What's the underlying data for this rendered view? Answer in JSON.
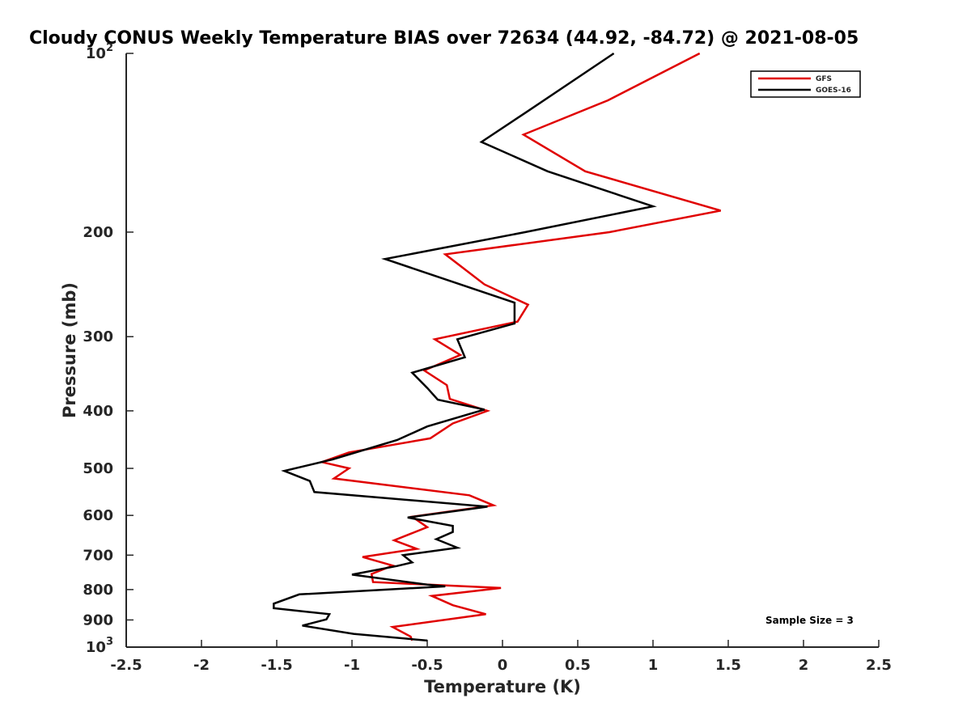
{
  "chart_data": {
    "type": "line",
    "title": "Cloudy CONUS Weekly Temperature BIAS over 72634 (44.92, -84.72) @ 2021-08-05",
    "xlabel": "Temperature (K)",
    "ylabel": "Pressure (mb)",
    "xlim": [
      -2.5,
      2.5
    ],
    "ylim": [
      1000,
      100
    ],
    "y_scale": "log",
    "y_reversed": true,
    "x_ticks": [
      "-2.5",
      "-2",
      "-1.5",
      "-1",
      "-0.5",
      "0",
      "0.5",
      "1",
      "1.5",
      "2",
      "2.5"
    ],
    "y_ticks": [
      {
        "value": 100,
        "label": "10",
        "sup": "2"
      },
      {
        "value": 200,
        "label": "200",
        "sup": ""
      },
      {
        "value": 300,
        "label": "300",
        "sup": ""
      },
      {
        "value": 400,
        "label": "400",
        "sup": ""
      },
      {
        "value": 500,
        "label": "500",
        "sup": ""
      },
      {
        "value": 600,
        "label": "600",
        "sup": ""
      },
      {
        "value": 700,
        "label": "700",
        "sup": ""
      },
      {
        "value": 800,
        "label": "800",
        "sup": ""
      },
      {
        "value": 900,
        "label": "900",
        "sup": ""
      },
      {
        "value": 1000,
        "label": "10",
        "sup": "3"
      }
    ],
    "legend_position": "top-right",
    "annotation": "Sample Size = 3",
    "series": [
      {
        "name": "GFS",
        "color": "#e00000",
        "points": [
          [
            1.31,
            100
          ],
          [
            0.7,
            120
          ],
          [
            0.14,
            137
          ],
          [
            0.55,
            158
          ],
          [
            1.45,
            184
          ],
          [
            0.71,
            200
          ],
          [
            -0.38,
            218
          ],
          [
            -0.12,
            245
          ],
          [
            0.17,
            265
          ],
          [
            0.1,
            283
          ],
          [
            -0.45,
            303
          ],
          [
            -0.28,
            322
          ],
          [
            -0.52,
            342
          ],
          [
            -0.37,
            362
          ],
          [
            -0.35,
            382
          ],
          [
            -0.1,
            400
          ],
          [
            -0.33,
            420
          ],
          [
            -0.48,
            445
          ],
          [
            -1.02,
            470
          ],
          [
            -1.2,
            488
          ],
          [
            -1.02,
            500
          ],
          [
            -1.12,
            520
          ],
          [
            -0.22,
            555
          ],
          [
            -0.06,
            577
          ],
          [
            -0.6,
            603
          ],
          [
            -0.5,
            628
          ],
          [
            -0.72,
            661
          ],
          [
            -0.57,
            683
          ],
          [
            -0.93,
            705
          ],
          [
            -0.73,
            729
          ],
          [
            -0.87,
            753
          ],
          [
            -0.86,
            777
          ],
          [
            -0.01,
            795
          ],
          [
            -0.47,
            820
          ],
          [
            -0.33,
            850
          ],
          [
            -0.11,
            880
          ],
          [
            -0.73,
            925
          ],
          [
            -0.61,
            960
          ],
          [
            -0.6,
            975
          ]
        ]
      },
      {
        "name": "GOES-16",
        "color": "#000000",
        "points": [
          [
            0.74,
            100
          ],
          [
            0.15,
            126
          ],
          [
            -0.14,
            141
          ],
          [
            0.3,
            158
          ],
          [
            1.0,
            181
          ],
          [
            0.15,
            200
          ],
          [
            -0.78,
            222
          ],
          [
            0.08,
            263
          ],
          [
            0.08,
            285
          ],
          [
            -0.3,
            303
          ],
          [
            -0.25,
            325
          ],
          [
            -0.6,
            345
          ],
          [
            -0.5,
            366
          ],
          [
            -0.43,
            383
          ],
          [
            -0.12,
            398
          ],
          [
            -0.5,
            425
          ],
          [
            -0.7,
            448
          ],
          [
            -1.13,
            483
          ],
          [
            -1.45,
            505
          ],
          [
            -1.28,
            525
          ],
          [
            -1.25,
            548
          ],
          [
            -0.1,
            580
          ],
          [
            -0.63,
            605
          ],
          [
            -0.33,
            625
          ],
          [
            -0.33,
            640
          ],
          [
            -0.44,
            658
          ],
          [
            -0.3,
            680
          ],
          [
            -0.66,
            700
          ],
          [
            -0.6,
            720
          ],
          [
            -0.7,
            730
          ],
          [
            -1.0,
            755
          ],
          [
            -0.5,
            785
          ],
          [
            -0.38,
            790
          ],
          [
            -1.35,
            815
          ],
          [
            -1.52,
            845
          ],
          [
            -1.52,
            860
          ],
          [
            -1.15,
            880
          ],
          [
            -1.17,
            898
          ],
          [
            -1.33,
            920
          ],
          [
            -0.99,
            950
          ],
          [
            -0.5,
            975
          ]
        ]
      }
    ]
  }
}
